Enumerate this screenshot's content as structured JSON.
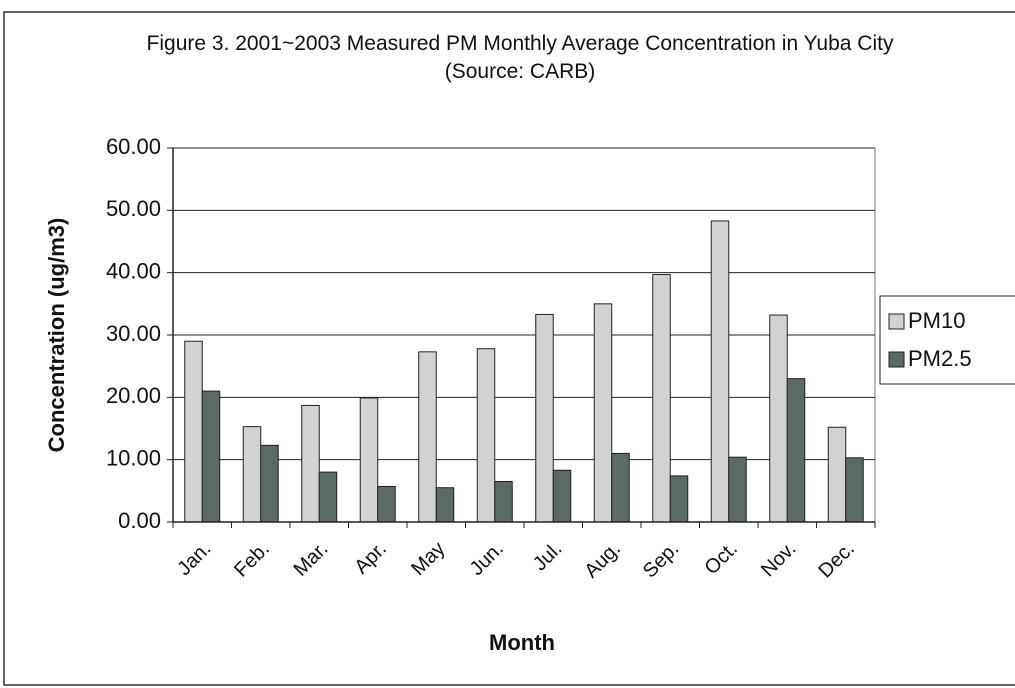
{
  "chart_data": {
    "type": "bar",
    "title": "Figure 3. 2001~2003 Measured PM Monthly Average Concentration in Yuba City (Source: CARB)",
    "x_label": "Month",
    "y_label": "Concentration (ug/m3)",
    "categories": [
      "Jan.",
      "Feb.",
      "Mar.",
      "Apr.",
      "May",
      "Jun.",
      "Jul.",
      "Aug.",
      "Sep.",
      "Oct.",
      "Nov.",
      "Dec."
    ],
    "series": [
      {
        "name": "PM10",
        "color": "#d2d2d2",
        "values": [
          29,
          15.3,
          18.7,
          19.9,
          27.3,
          27.8,
          33.3,
          35,
          39.7,
          48.3,
          33.2,
          15.2
        ]
      },
      {
        "name": "PM2.5",
        "color": "#5b6b63",
        "values": [
          21,
          12.3,
          8,
          5.7,
          5.5,
          6.5,
          8.3,
          11,
          7.4,
          10.4,
          23,
          10.3
        ]
      }
    ],
    "ylim": [
      0,
      60
    ],
    "yticks": [
      {
        "value": 0,
        "label": "0.00"
      },
      {
        "value": 10,
        "label": "10.00"
      },
      {
        "value": 20,
        "label": "20.00"
      },
      {
        "value": 30,
        "label": "30.00"
      },
      {
        "value": 40,
        "label": "40.00"
      },
      {
        "value": 50,
        "label": "50.00"
      },
      {
        "value": 60,
        "label": "60.00"
      }
    ],
    "grid": true,
    "legend": "right"
  }
}
